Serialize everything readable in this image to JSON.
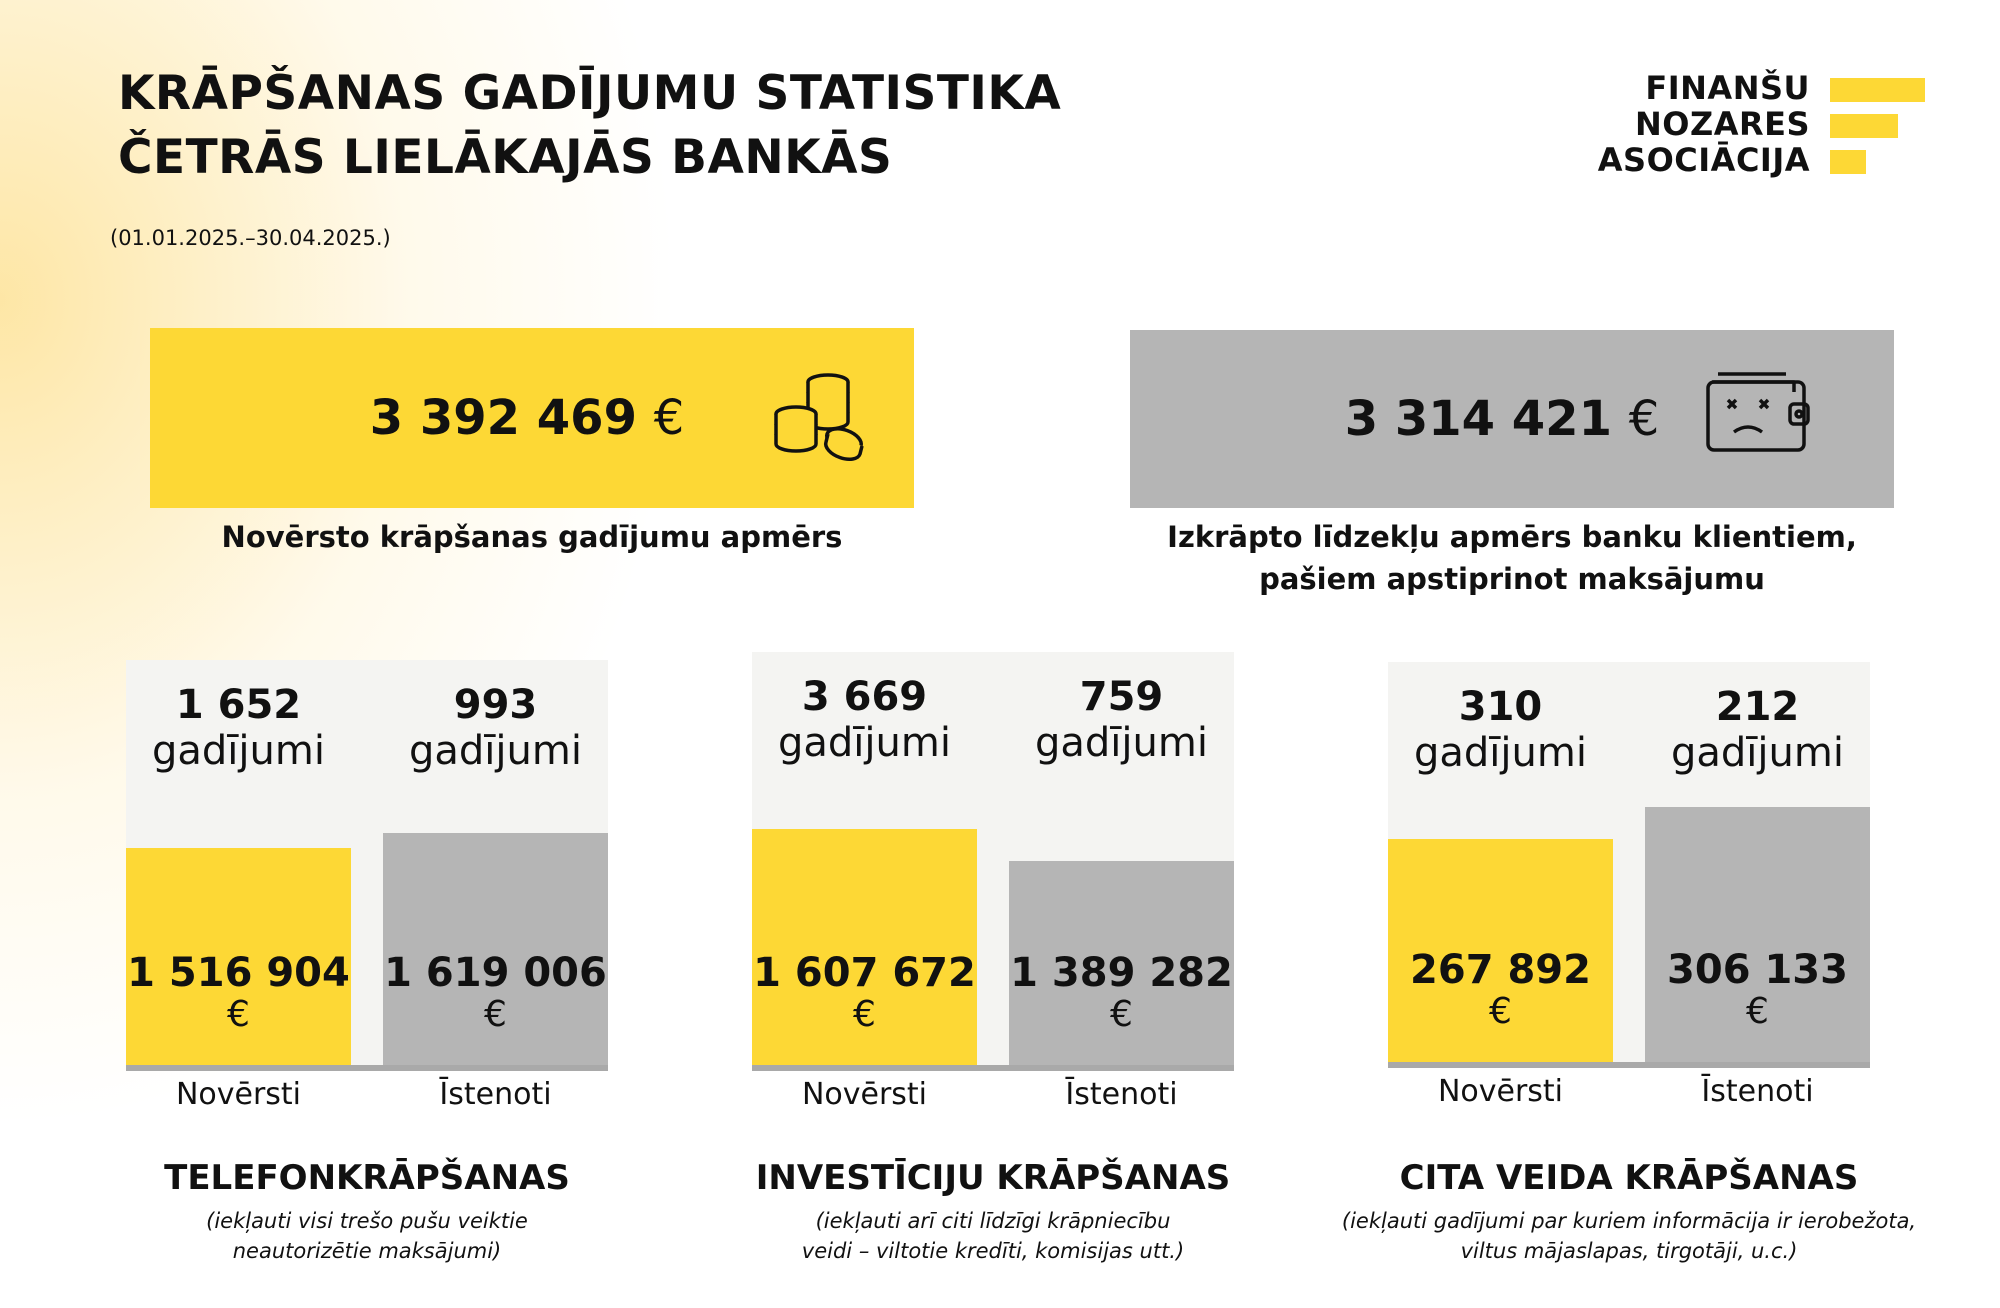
{
  "header": {
    "title_line1": "KRĀPŠANAS GADĪJUMU STATISTIKA",
    "title_line2": "ČETRĀS LIELĀKAJĀS BANKĀS",
    "period": "(01.01.2025.–30.04.2025.)"
  },
  "logo": {
    "line1": "FINANŠU",
    "line2": "NOZARES",
    "line3": "ASOCIĀCIJA",
    "accent_color": "#FDD835"
  },
  "summary": {
    "prevented": {
      "amount": "3 392 469",
      "currency": "€",
      "caption": "Novērsto krāpšanas gadījumu apmērs",
      "icon": "coins-stack-icon",
      "color": "#FDD835"
    },
    "stolen": {
      "amount": "3 314 421",
      "currency": "€",
      "caption_line1": "Izkrāpto līdzekļu apmērs banku klientiem,",
      "caption_line2": "pašiem apstiprinot maksājumu",
      "icon": "empty-wallet-icon",
      "color": "#b5b5b5"
    }
  },
  "chart_data": [
    {
      "type": "bar",
      "title": "TELEFONKRĀPŠANAS",
      "note_line1": "(iekļauti visi trešo pušu veiktie",
      "note_line2": "neautorizētie maksājumi)",
      "categories": [
        "Novērsti",
        "Īstenoti"
      ],
      "values": [
        1516904,
        1619006
      ],
      "value_labels": [
        "1  516 904",
        "1 619 006"
      ],
      "currency": "€",
      "counts": [
        "1 652",
        "993"
      ],
      "count_unit": "gadījumi",
      "colors": [
        "#FDD835",
        "#b5b5b5"
      ]
    },
    {
      "type": "bar",
      "title": "INVESTĪCIJU KRĀPŠANAS",
      "note_line1": "(iekļauti arī citi līdzīgi krāpniecību",
      "note_line2": "veidi – viltotie kredīti, komisijas utt.)",
      "categories": [
        "Novērsti",
        "Īstenoti"
      ],
      "values": [
        1607672,
        1389282
      ],
      "value_labels": [
        "1 607 672",
        "1 389 282"
      ],
      "currency": "€",
      "counts": [
        "3 669",
        "759"
      ],
      "count_unit": "gadījumi",
      "colors": [
        "#FDD835",
        "#b5b5b5"
      ]
    },
    {
      "type": "bar",
      "title": "CITA VEIDA KRĀPŠANAS",
      "note_line1": "(iekļauti gadījumi par kuriem informācija ir ierobežota,",
      "note_line2": "viltus mājaslapas, tirgotāji,  u.c.)",
      "categories": [
        "Novērsti",
        "Īstenoti"
      ],
      "values": [
        267892,
        306133
      ],
      "value_labels": [
        "267 892",
        "306 133"
      ],
      "currency": "€",
      "counts": [
        "310",
        "212"
      ],
      "count_unit": "gadījumi",
      "colors": [
        "#FDD835",
        "#b5b5b5"
      ]
    }
  ]
}
